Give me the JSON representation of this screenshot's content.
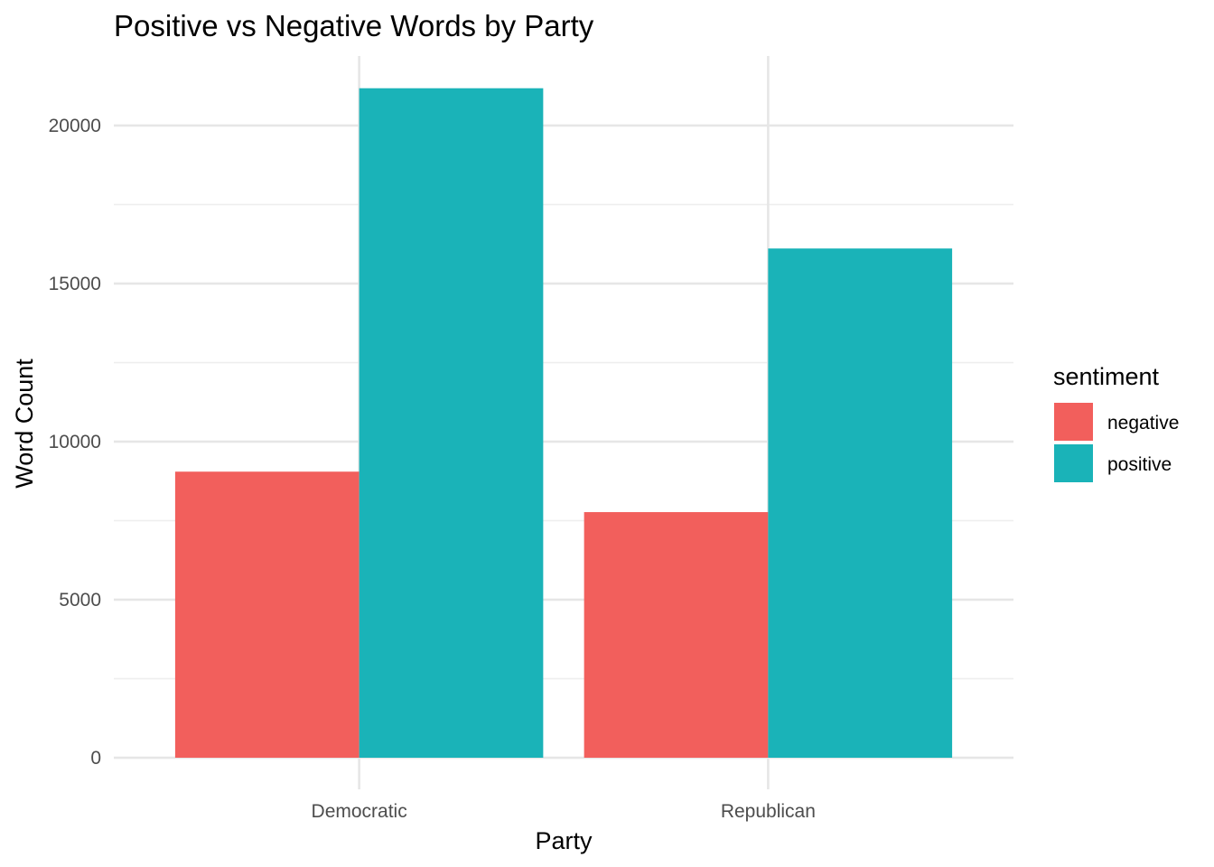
{
  "chart_data": {
    "type": "bar",
    "title": "Positive vs Negative Words by Party",
    "xlabel": "Party",
    "ylabel": "Word Count",
    "categories": [
      "Democratic",
      "Republican"
    ],
    "series": [
      {
        "name": "negative",
        "color": "#F25F5C",
        "values": [
          9050,
          7770
        ]
      },
      {
        "name": "positive",
        "color": "#1AB3B8",
        "values": [
          21180,
          16110
        ]
      }
    ],
    "ylim": [
      -1000,
      22200
    ],
    "yticks": [
      0,
      5000,
      10000,
      15000,
      20000
    ],
    "ytick_labels": [
      "0",
      "5000",
      "10000",
      "15000",
      "20000"
    ],
    "grid": true,
    "legend": {
      "title": "sentiment",
      "position": "right"
    }
  }
}
